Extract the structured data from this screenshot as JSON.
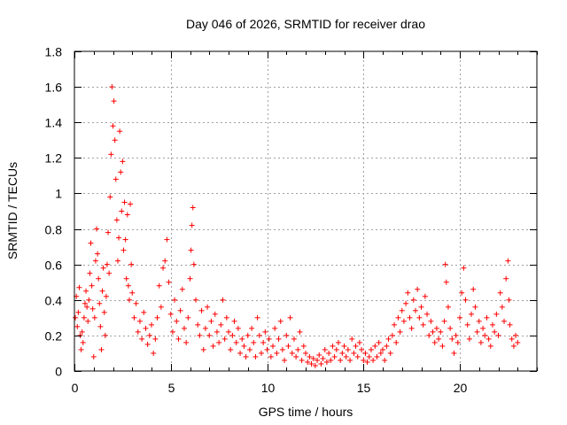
{
  "chart_data": {
    "type": "scatter",
    "title": "Day 046 of 2026, SRMTID for receiver drao",
    "xlabel": "GPS time / hours",
    "ylabel": "SRMTID / TECUs",
    "xlim": [
      0,
      24
    ],
    "ylim": [
      0,
      1.8
    ],
    "xticks": [
      0,
      5,
      10,
      15,
      20
    ],
    "xtick_labels": [
      "0",
      "5",
      "10",
      "15",
      "20"
    ],
    "yticks": [
      0,
      0.2,
      0.4,
      0.6,
      0.8,
      1,
      1.2,
      1.4,
      1.6,
      1.8
    ],
    "ytick_labels": [
      "0",
      "0.2",
      "0.4",
      "0.6",
      "0.8",
      "1",
      "1.2",
      "1.4",
      "1.6",
      "1.8"
    ],
    "grid": true,
    "marker": "+",
    "series_color": "#ff0000",
    "series": [
      {
        "name": "SRMTID",
        "points": [
          [
            0.05,
            0.3
          ],
          [
            0.1,
            0.42
          ],
          [
            0.15,
            0.25
          ],
          [
            0.2,
            0.33
          ],
          [
            0.25,
            0.47
          ],
          [
            0.3,
            0.2
          ],
          [
            0.35,
            0.12
          ],
          [
            0.4,
            0.22
          ],
          [
            0.45,
            0.16
          ],
          [
            0.5,
            0.3
          ],
          [
            0.55,
            0.38
          ],
          [
            0.6,
            0.45
          ],
          [
            0.65,
            0.36
          ],
          [
            0.7,
            0.28
          ],
          [
            0.75,
            0.4
          ],
          [
            0.8,
            0.55
          ],
          [
            0.85,
            0.72
          ],
          [
            0.9,
            0.48
          ],
          [
            0.95,
            0.35
          ],
          [
            1.0,
            0.08
          ],
          [
            1.05,
            0.3
          ],
          [
            1.1,
            0.62
          ],
          [
            1.15,
            0.8
          ],
          [
            1.2,
            0.66
          ],
          [
            1.25,
            0.52
          ],
          [
            1.3,
            0.38
          ],
          [
            1.35,
            0.25
          ],
          [
            1.4,
            0.12
          ],
          [
            1.45,
            0.45
          ],
          [
            1.5,
            0.58
          ],
          [
            1.55,
            0.33
          ],
          [
            1.6,
            0.2
          ],
          [
            1.65,
            0.42
          ],
          [
            1.7,
            0.6
          ],
          [
            1.75,
            0.78
          ],
          [
            1.8,
            0.55
          ],
          [
            1.85,
            0.98
          ],
          [
            1.9,
            1.22
          ],
          [
            1.95,
            1.6
          ],
          [
            2.0,
            1.38
          ],
          [
            2.05,
            1.52
          ],
          [
            2.1,
            1.3
          ],
          [
            2.15,
            1.08
          ],
          [
            2.2,
            0.85
          ],
          [
            2.25,
            0.62
          ],
          [
            2.3,
            0.75
          ],
          [
            2.35,
            1.35
          ],
          [
            2.4,
            1.12
          ],
          [
            2.45,
            0.9
          ],
          [
            2.5,
            1.18
          ],
          [
            2.55,
            0.68
          ],
          [
            2.6,
            0.95
          ],
          [
            2.65,
            0.74
          ],
          [
            2.7,
            0.52
          ],
          [
            2.75,
            0.88
          ],
          [
            2.8,
            0.48
          ],
          [
            2.85,
            0.4
          ],
          [
            2.9,
            0.94
          ],
          [
            2.95,
            0.6
          ],
          [
            3.0,
            0.44
          ],
          [
            3.1,
            0.3
          ],
          [
            3.2,
            0.38
          ],
          [
            3.3,
            0.22
          ],
          [
            3.4,
            0.28
          ],
          [
            3.5,
            0.18
          ],
          [
            3.6,
            0.33
          ],
          [
            3.7,
            0.24
          ],
          [
            3.8,
            0.15
          ],
          [
            3.9,
            0.2
          ],
          [
            4.0,
            0.26
          ],
          [
            4.1,
            0.1
          ],
          [
            4.2,
            0.18
          ],
          [
            4.3,
            0.3
          ],
          [
            4.4,
            0.48
          ],
          [
            4.5,
            0.36
          ],
          [
            4.6,
            0.58
          ],
          [
            4.7,
            0.62
          ],
          [
            4.8,
            0.74
          ],
          [
            4.9,
            0.5
          ],
          [
            5.0,
            0.32
          ],
          [
            5.1,
            0.22
          ],
          [
            5.2,
            0.4
          ],
          [
            5.3,
            0.28
          ],
          [
            5.4,
            0.18
          ],
          [
            5.5,
            0.34
          ],
          [
            5.6,
            0.46
          ],
          [
            5.7,
            0.24
          ],
          [
            5.8,
            0.16
          ],
          [
            5.9,
            0.3
          ],
          [
            6.0,
            0.52
          ],
          [
            6.05,
            0.68
          ],
          [
            6.1,
            0.82
          ],
          [
            6.15,
            0.92
          ],
          [
            6.2,
            0.6
          ],
          [
            6.3,
            0.4
          ],
          [
            6.4,
            0.26
          ],
          [
            6.5,
            0.2
          ],
          [
            6.6,
            0.34
          ],
          [
            6.7,
            0.12
          ],
          [
            6.8,
            0.24
          ],
          [
            6.9,
            0.36
          ],
          [
            7.0,
            0.2
          ],
          [
            7.1,
            0.28
          ],
          [
            7.2,
            0.14
          ],
          [
            7.3,
            0.32
          ],
          [
            7.4,
            0.22
          ],
          [
            7.5,
            0.16
          ],
          [
            7.6,
            0.26
          ],
          [
            7.7,
            0.4
          ],
          [
            7.8,
            0.18
          ],
          [
            7.9,
            0.3
          ],
          [
            8.0,
            0.22
          ],
          [
            8.1,
            0.12
          ],
          [
            8.2,
            0.2
          ],
          [
            8.3,
            0.28
          ],
          [
            8.4,
            0.16
          ],
          [
            8.5,
            0.24
          ],
          [
            8.6,
            0.1
          ],
          [
            8.7,
            0.18
          ],
          [
            8.8,
            0.14
          ],
          [
            8.9,
            0.08
          ],
          [
            9.0,
            0.2
          ],
          [
            9.1,
            0.12
          ],
          [
            9.2,
            0.24
          ],
          [
            9.3,
            0.16
          ],
          [
            9.4,
            0.08
          ],
          [
            9.5,
            0.3
          ],
          [
            9.6,
            0.2
          ],
          [
            9.7,
            0.1
          ],
          [
            9.8,
            0.16
          ],
          [
            9.9,
            0.22
          ],
          [
            10.0,
            0.12
          ],
          [
            10.1,
            0.18
          ],
          [
            10.2,
            0.08
          ],
          [
            10.3,
            0.14
          ],
          [
            10.4,
            0.24
          ],
          [
            10.5,
            0.1
          ],
          [
            10.6,
            0.18
          ],
          [
            10.7,
            0.28
          ],
          [
            10.8,
            0.12
          ],
          [
            10.9,
            0.06
          ],
          [
            11.0,
            0.2
          ],
          [
            11.1,
            0.14
          ],
          [
            11.2,
            0.3
          ],
          [
            11.3,
            0.1
          ],
          [
            11.4,
            0.18
          ],
          [
            11.5,
            0.08
          ],
          [
            11.6,
            0.12
          ],
          [
            11.7,
            0.22
          ],
          [
            11.8,
            0.06
          ],
          [
            11.9,
            0.14
          ],
          [
            12.0,
            0.1
          ],
          [
            12.1,
            0.05
          ],
          [
            12.2,
            0.08
          ],
          [
            12.3,
            0.04
          ],
          [
            12.4,
            0.07
          ],
          [
            12.5,
            0.03
          ],
          [
            12.6,
            0.06
          ],
          [
            12.7,
            0.09
          ],
          [
            12.8,
            0.04
          ],
          [
            12.9,
            0.07
          ],
          [
            13.0,
            0.12
          ],
          [
            13.1,
            0.05
          ],
          [
            13.2,
            0.1
          ],
          [
            13.3,
            0.06
          ],
          [
            13.4,
            0.14
          ],
          [
            13.5,
            0.08
          ],
          [
            13.6,
            0.12
          ],
          [
            13.7,
            0.16
          ],
          [
            13.8,
            0.06
          ],
          [
            13.9,
            0.1
          ],
          [
            14.0,
            0.14
          ],
          [
            14.1,
            0.08
          ],
          [
            14.2,
            0.12
          ],
          [
            14.3,
            0.06
          ],
          [
            14.4,
            0.18
          ],
          [
            14.5,
            0.1
          ],
          [
            14.6,
            0.14
          ],
          [
            14.7,
            0.08
          ],
          [
            14.8,
            0.16
          ],
          [
            14.9,
            0.12
          ],
          [
            15.0,
            0.06
          ],
          [
            15.1,
            0.1
          ],
          [
            15.2,
            0.05
          ],
          [
            15.3,
            0.08
          ],
          [
            15.4,
            0.12
          ],
          [
            15.5,
            0.06
          ],
          [
            15.6,
            0.14
          ],
          [
            15.7,
            0.08
          ],
          [
            15.8,
            0.16
          ],
          [
            15.9,
            0.1
          ],
          [
            16.0,
            0.12
          ],
          [
            16.1,
            0.06
          ],
          [
            16.2,
            0.14
          ],
          [
            16.3,
            0.18
          ],
          [
            16.4,
            0.1
          ],
          [
            16.5,
            0.2
          ],
          [
            16.6,
            0.26
          ],
          [
            16.7,
            0.16
          ],
          [
            16.8,
            0.3
          ],
          [
            16.9,
            0.22
          ],
          [
            17.0,
            0.34
          ],
          [
            17.1,
            0.28
          ],
          [
            17.2,
            0.38
          ],
          [
            17.3,
            0.44
          ],
          [
            17.4,
            0.3
          ],
          [
            17.5,
            0.24
          ],
          [
            17.6,
            0.4
          ],
          [
            17.7,
            0.34
          ],
          [
            17.8,
            0.46
          ],
          [
            17.9,
            0.3
          ],
          [
            18.0,
            0.36
          ],
          [
            18.1,
            0.26
          ],
          [
            18.2,
            0.42
          ],
          [
            18.3,
            0.32
          ],
          [
            18.4,
            0.2
          ],
          [
            18.5,
            0.28
          ],
          [
            18.6,
            0.22
          ],
          [
            18.7,
            0.16
          ],
          [
            18.8,
            0.24
          ],
          [
            18.9,
            0.18
          ],
          [
            19.0,
            0.22
          ],
          [
            19.1,
            0.14
          ],
          [
            19.2,
            0.28
          ],
          [
            19.25,
            0.6
          ],
          [
            19.3,
            0.5
          ],
          [
            19.4,
            0.36
          ],
          [
            19.5,
            0.24
          ],
          [
            19.6,
            0.18
          ],
          [
            19.7,
            0.1
          ],
          [
            19.8,
            0.2
          ],
          [
            19.9,
            0.16
          ],
          [
            20.0,
            0.3
          ],
          [
            20.1,
            0.44
          ],
          [
            20.2,
            0.58
          ],
          [
            20.3,
            0.4
          ],
          [
            20.4,
            0.26
          ],
          [
            20.5,
            0.18
          ],
          [
            20.6,
            0.32
          ],
          [
            20.7,
            0.46
          ],
          [
            20.8,
            0.36
          ],
          [
            20.9,
            0.22
          ],
          [
            21.0,
            0.28
          ],
          [
            21.1,
            0.16
          ],
          [
            21.2,
            0.24
          ],
          [
            21.3,
            0.2
          ],
          [
            21.4,
            0.3
          ],
          [
            21.5,
            0.18
          ],
          [
            21.6,
            0.14
          ],
          [
            21.7,
            0.26
          ],
          [
            21.8,
            0.22
          ],
          [
            21.9,
            0.32
          ],
          [
            22.0,
            0.2
          ],
          [
            22.1,
            0.44
          ],
          [
            22.2,
            0.36
          ],
          [
            22.3,
            0.28
          ],
          [
            22.4,
            0.52
          ],
          [
            22.5,
            0.62
          ],
          [
            22.55,
            0.4
          ],
          [
            22.6,
            0.26
          ],
          [
            22.7,
            0.18
          ],
          [
            22.8,
            0.14
          ],
          [
            22.9,
            0.2
          ],
          [
            23.0,
            0.16
          ]
        ]
      }
    ]
  }
}
